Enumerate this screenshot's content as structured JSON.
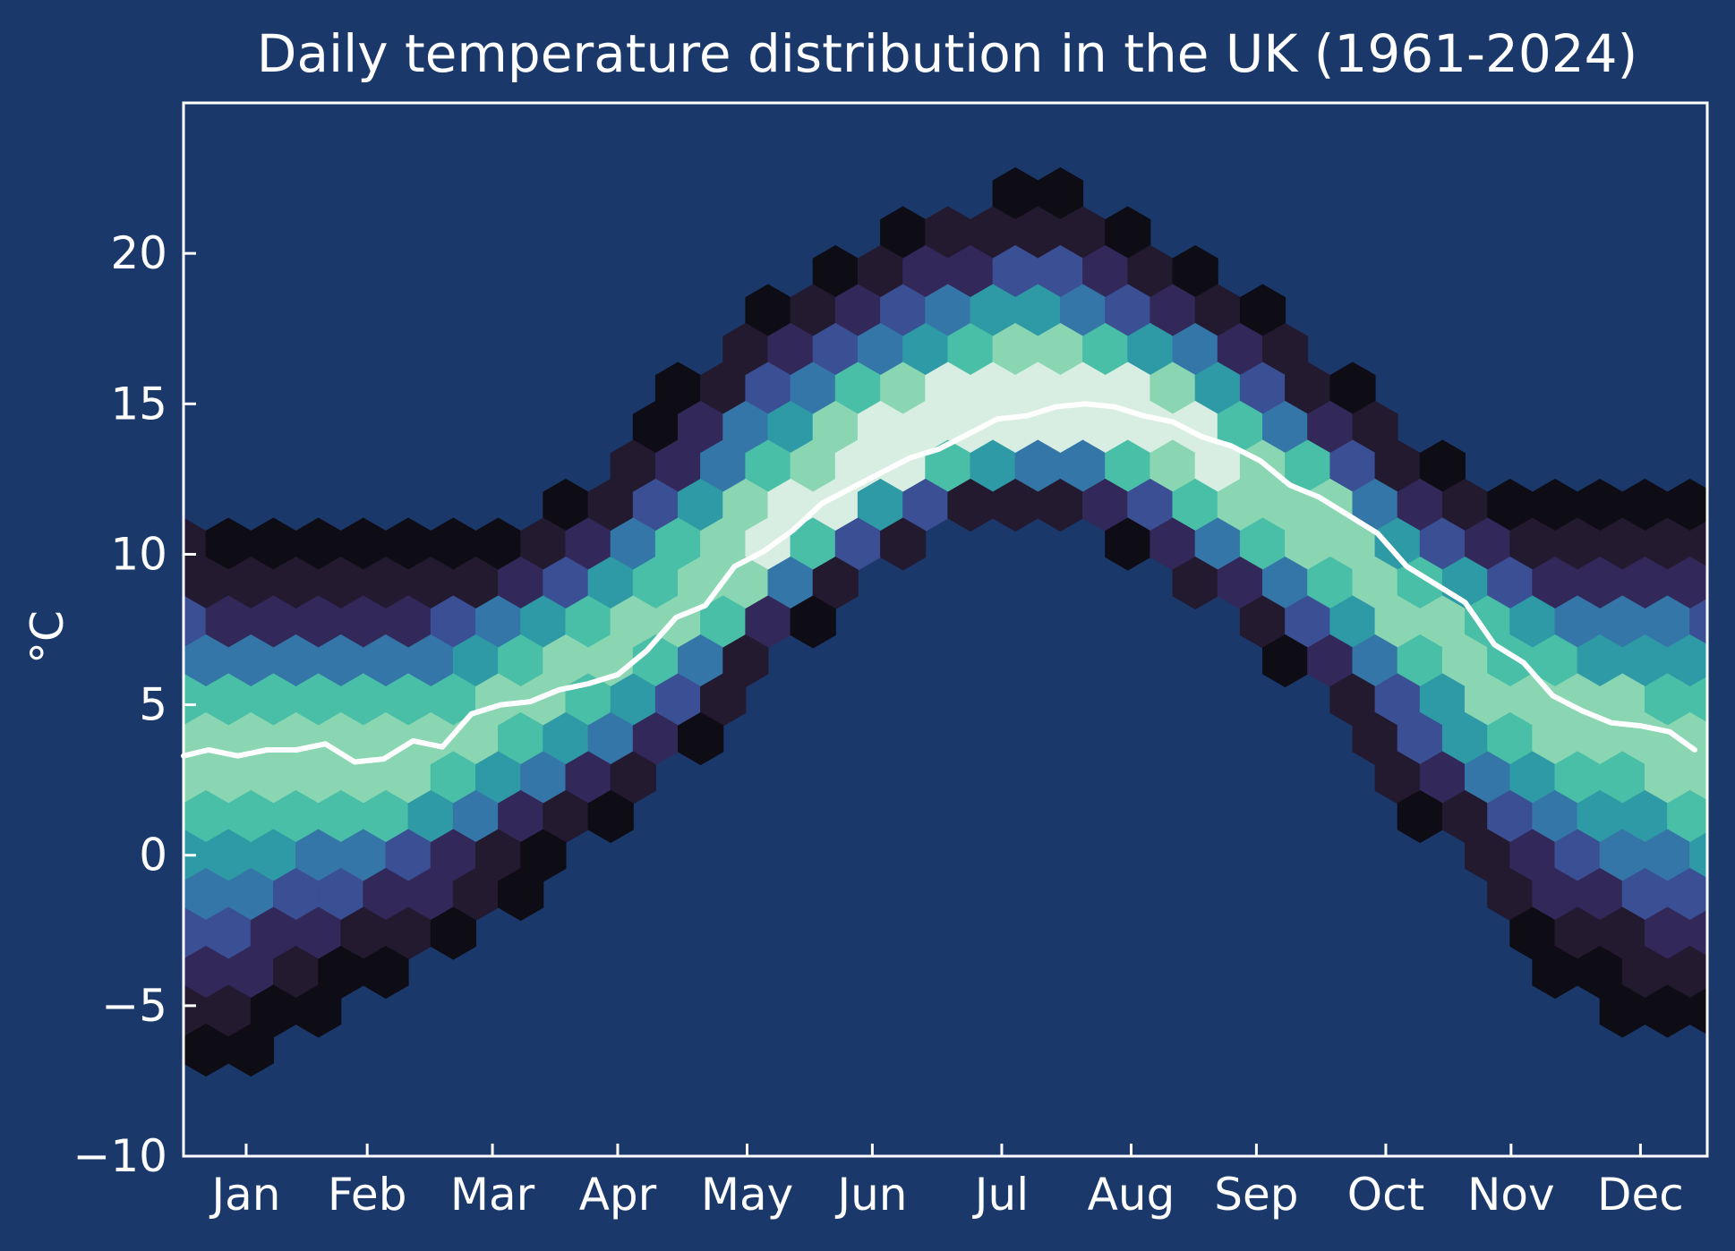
{
  "chart_data": {
    "type": "hexbin",
    "title": "Daily temperature distribution in the UK (1961-2024)",
    "xlabel": "",
    "ylabel": "°C",
    "x_unit": "day of year",
    "xlim": [
      1,
      366
    ],
    "ylim": [
      -10,
      25
    ],
    "months": [
      {
        "label": "Jan",
        "day": 16
      },
      {
        "label": "Feb",
        "day": 45
      },
      {
        "label": "Mar",
        "day": 75
      },
      {
        "label": "Apr",
        "day": 105
      },
      {
        "label": "May",
        "day": 136
      },
      {
        "label": "Jun",
        "day": 166
      },
      {
        "label": "Jul",
        "day": 197
      },
      {
        "label": "Aug",
        "day": 228
      },
      {
        "label": "Sep",
        "day": 258
      },
      {
        "label": "Oct",
        "day": 289
      },
      {
        "label": "Nov",
        "day": 319
      },
      {
        "label": "Dec",
        "day": 350
      }
    ],
    "yticks": [
      -10,
      -5,
      0,
      5,
      10,
      15,
      20
    ],
    "ytick_labels": [
      "−10",
      "−5",
      "0",
      "5",
      "10",
      "15",
      "20"
    ],
    "grid": false,
    "colormap": [
      "#0e0c14",
      "#231a30",
      "#33285a",
      "#3b4f94",
      "#3576a8",
      "#2e9aa5",
      "#48bfa6",
      "#8ad6b2",
      "#d9eee2"
    ],
    "background_color": "#1b386b",
    "mean_line_color": "#ffffff",
    "series": [
      {
        "kind": "distribution-envelope",
        "x": [
          1,
          16,
          30,
          45,
          60,
          75,
          90,
          105,
          120,
          136,
          151,
          166,
          181,
          197,
          212,
          228,
          243,
          258,
          273,
          289,
          304,
          319,
          334,
          350,
          366
        ],
        "p50": [
          3.3,
          3.3,
          3.4,
          3.1,
          3.8,
          5.0,
          5.5,
          6.5,
          8.0,
          10.0,
          11.5,
          13.0,
          14.0,
          14.8,
          15.0,
          14.5,
          13.3,
          12.2,
          11.0,
          9.0,
          7.0,
          5.3,
          4.5,
          4.1,
          3.4
        ],
        "p1": [
          -7,
          -7.3,
          -5.5,
          -4.5,
          -3.5,
          -2,
          -0.5,
          1,
          3,
          5.5,
          7.5,
          9.2,
          10.5,
          11.0,
          11.0,
          10.0,
          8.5,
          7,
          5,
          2,
          0,
          -2.5,
          -4.5,
          -5.5,
          -5.8
        ],
        "p99": [
          11.5,
          10.5,
          10.5,
          10.5,
          10.5,
          11,
          12,
          13.5,
          16,
          18.5,
          19.5,
          20.5,
          21.5,
          22,
          22,
          21,
          20,
          18.5,
          16.5,
          15,
          13.5,
          12.5,
          11.5,
          12.5,
          11.5
        ],
        "density_peak": 0.9
      },
      {
        "kind": "line",
        "name": "",
        "x": [
          1,
          7,
          14,
          21,
          28,
          35,
          42,
          49,
          56,
          63,
          70,
          77,
          84,
          91,
          98,
          105,
          112,
          119,
          126,
          133,
          140,
          147,
          154,
          161,
          168,
          175,
          182,
          189,
          196,
          203,
          210,
          217,
          224,
          231,
          238,
          245,
          252,
          259,
          266,
          273,
          280,
          287,
          294,
          301,
          308,
          315,
          322,
          329,
          336,
          343,
          350,
          357,
          363
        ],
        "y": [
          3.3,
          3.5,
          3.3,
          3.5,
          3.5,
          3.7,
          3.1,
          3.2,
          3.8,
          3.6,
          4.7,
          5.0,
          5.1,
          5.5,
          5.7,
          6.0,
          6.8,
          7.9,
          8.3,
          9.6,
          10.1,
          10.8,
          11.7,
          12.2,
          12.7,
          13.2,
          13.5,
          14.0,
          14.5,
          14.6,
          14.9,
          15.0,
          14.9,
          14.6,
          14.4,
          13.9,
          13.6,
          13.1,
          12.3,
          11.9,
          11.3,
          10.7,
          9.6,
          9.0,
          8.4,
          7.0,
          6.4,
          5.3,
          4.8,
          4.4,
          4.3,
          4.1,
          3.5
        ]
      }
    ]
  }
}
